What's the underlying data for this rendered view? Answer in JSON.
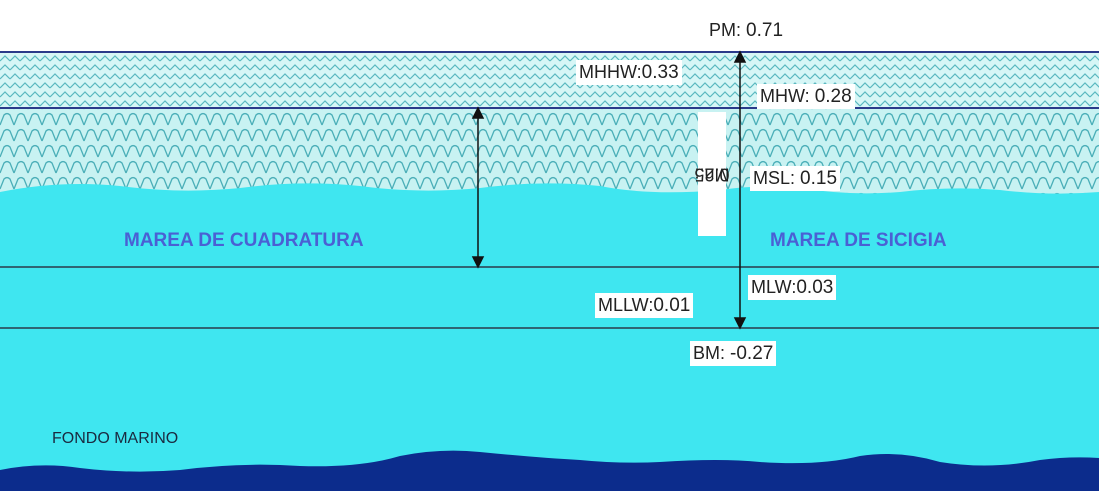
{
  "levels": [
    {
      "label": "PM:",
      "value": "0.71"
    },
    {
      "label": "MHHW:",
      "value": "0.33"
    },
    {
      "label": "MHW:",
      "value": "0.28"
    },
    {
      "label": "Mn.:",
      "value": "0.25"
    },
    {
      "label": "MSL:",
      "value": "0.15"
    },
    {
      "label": "MLW:",
      "value": "0.03"
    },
    {
      "label": "MLLW:",
      "value": "0.01"
    },
    {
      "label": "BM:",
      "value": "-0.27"
    }
  ],
  "zones": {
    "neap": "MAREA DE CUADRATURA",
    "spring": "MAREA DE SICIGIA",
    "seabed": "FONDO MARINO"
  }
}
